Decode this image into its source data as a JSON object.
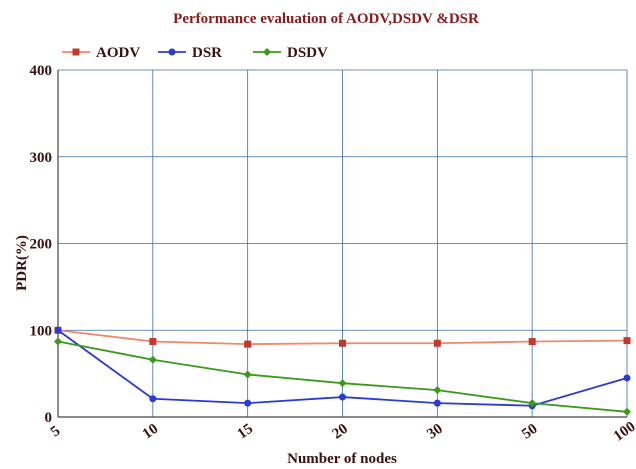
{
  "chart_data": {
    "type": "line",
    "title": "Performance evaluation of AODV,DSDV &DSR",
    "xlabel": "Number of nodes",
    "ylabel": "PDR(%)",
    "categories": [
      "5",
      "10",
      "15",
      "20",
      "30",
      "50",
      "100"
    ],
    "ylim": [
      0,
      400
    ],
    "yticks": [
      0,
      100,
      200,
      300,
      400
    ],
    "grid": true,
    "legend_position": "top-left",
    "series": [
      {
        "name": "AODV",
        "color": "#f0886a",
        "marker": "square",
        "marker_color": "#c0392b",
        "values": [
          100,
          87,
          84,
          85,
          85,
          87,
          88
        ]
      },
      {
        "name": "DSR",
        "color": "#2a3bd4",
        "marker": "circle",
        "marker_color": "#2a3bd4",
        "values": [
          100,
          21,
          16,
          23,
          16,
          13,
          45
        ]
      },
      {
        "name": "DSDV",
        "color": "#3a9a1a",
        "marker": "diamond",
        "marker_color": "#3a9a1a",
        "values": [
          87,
          66,
          49,
          39,
          31,
          16,
          6
        ]
      }
    ]
  },
  "colors": {
    "title": "#8b1a1a",
    "axis_text": "#3a1010",
    "grid": "#3b6ea5"
  }
}
